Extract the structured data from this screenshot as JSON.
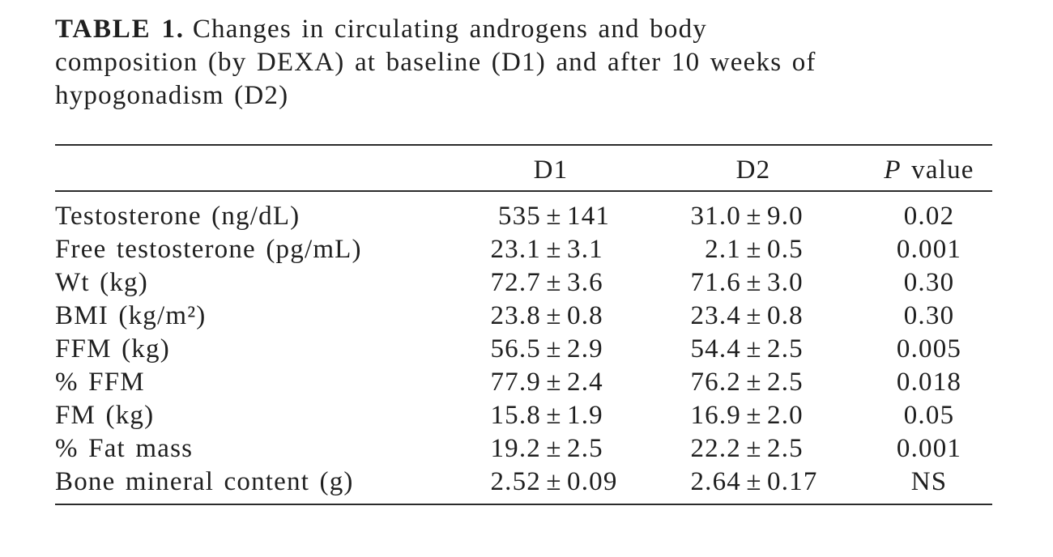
{
  "page": {
    "background_color": "#ffffff",
    "text_color": "#1f1f1f",
    "rule_color": "#2b2b2b"
  },
  "title": {
    "label": "TABLE 1.",
    "lines": [
      "Changes in circulating androgens and body",
      "composition (by DEXA) at baseline (D1) and after 10 weeks of",
      "hypogonadism (D2)"
    ]
  },
  "table": {
    "plus_minus": "±",
    "header": {
      "col_d1": "D1",
      "col_d2": "D2",
      "p_italic": "P",
      "p_rest": " value"
    },
    "rows": [
      {
        "label": "Testosterone (ng/dL)",
        "d1": {
          "mean": "535",
          "sd": "141"
        },
        "d2": {
          "mean": "31.0",
          "sd": "9.0"
        },
        "p": "0.02"
      },
      {
        "label": "Free testosterone (pg/mL)",
        "d1": {
          "mean": "23.1",
          "sd": "3.1"
        },
        "d2": {
          "mean": "2.1",
          "sd": "0.5"
        },
        "p": "0.001"
      },
      {
        "label": "Wt (kg)",
        "d1": {
          "mean": "72.7",
          "sd": "3.6"
        },
        "d2": {
          "mean": "71.6",
          "sd": "3.0"
        },
        "p": "0.30"
      },
      {
        "label": "BMI (kg/m²)",
        "d1": {
          "mean": "23.8",
          "sd": "0.8"
        },
        "d2": {
          "mean": "23.4",
          "sd": "0.8"
        },
        "p": "0.30"
      },
      {
        "label": "FFM (kg)",
        "d1": {
          "mean": "56.5",
          "sd": "2.9"
        },
        "d2": {
          "mean": "54.4",
          "sd": "2.5"
        },
        "p": "0.005"
      },
      {
        "label": "% FFM",
        "d1": {
          "mean": "77.9",
          "sd": "2.4"
        },
        "d2": {
          "mean": "76.2",
          "sd": "2.5"
        },
        "p": "0.018"
      },
      {
        "label": "FM (kg)",
        "d1": {
          "mean": "15.8",
          "sd": "1.9"
        },
        "d2": {
          "mean": "16.9",
          "sd": "2.0"
        },
        "p": "0.05"
      },
      {
        "label": "% Fat mass",
        "d1": {
          "mean": "19.2",
          "sd": "2.5"
        },
        "d2": {
          "mean": "22.2",
          "sd": "2.5"
        },
        "p": "0.001"
      },
      {
        "label": "Bone mineral content (g)",
        "d1": {
          "mean": "2.52",
          "sd": "0.09"
        },
        "d2": {
          "mean": "2.64",
          "sd": "0.17"
        },
        "p": "NS"
      }
    ]
  }
}
